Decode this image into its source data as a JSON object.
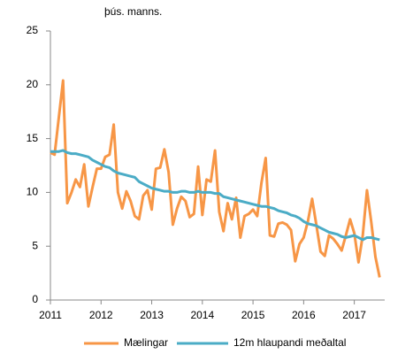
{
  "chart_data": {
    "type": "line",
    "y_label": "þús. manns.",
    "x": [
      2011,
      2011.083,
      2011.167,
      2011.25,
      2011.333,
      2011.417,
      2011.5,
      2011.583,
      2011.667,
      2011.75,
      2011.833,
      2011.917,
      2012,
      2012.083,
      2012.167,
      2012.25,
      2012.333,
      2012.417,
      2012.5,
      2012.583,
      2012.667,
      2012.75,
      2012.833,
      2012.917,
      2013,
      2013.083,
      2013.167,
      2013.25,
      2013.333,
      2013.417,
      2013.5,
      2013.583,
      2013.667,
      2013.75,
      2013.833,
      2013.917,
      2014,
      2014.083,
      2014.167,
      2014.25,
      2014.333,
      2014.417,
      2014.5,
      2014.583,
      2014.667,
      2014.75,
      2014.833,
      2014.917,
      2015,
      2015.083,
      2015.167,
      2015.25,
      2015.333,
      2015.417,
      2015.5,
      2015.583,
      2015.667,
      2015.75,
      2015.833,
      2015.917,
      2016,
      2016.083,
      2016.167,
      2016.25,
      2016.333,
      2016.417,
      2016.5,
      2016.583,
      2016.667,
      2016.75,
      2016.833,
      2016.917,
      2017,
      2017.083,
      2017.167,
      2017.25,
      2017.333,
      2017.417,
      2017.5
    ],
    "series": [
      {
        "name": "Mælingar",
        "color": "#f79646",
        "values": [
          13.7,
          13.5,
          17.0,
          20.4,
          9.0,
          10.0,
          11.2,
          10.5,
          12.6,
          8.7,
          10.5,
          12.2,
          12.2,
          13.3,
          13.5,
          16.3,
          10.0,
          8.5,
          10.1,
          9.2,
          7.8,
          7.5,
          9.7,
          10.2,
          8.4,
          12.2,
          12.3,
          14.0,
          11.9,
          7.0,
          8.5,
          9.6,
          9.2,
          7.7,
          8.0,
          12.4,
          7.9,
          11.2,
          11.0,
          13.9,
          8.2,
          6.4,
          9.0,
          7.5,
          9.5,
          5.8,
          7.8,
          8.0,
          8.4,
          7.8,
          10.9,
          13.2,
          6.0,
          5.9,
          7.1,
          7.2,
          7.0,
          6.5,
          3.6,
          5.2,
          5.8,
          7.3,
          9.4,
          7.0,
          4.5,
          4.1,
          6.0,
          5.7,
          5.2,
          4.6,
          6.0,
          7.5,
          6.2,
          3.5,
          6.0,
          10.2,
          7.3,
          4.0,
          2.1
        ]
      },
      {
        "name": "12m hlaupandi meðaltal",
        "color": "#4bacc6",
        "values": [
          13.8,
          13.8,
          13.8,
          13.9,
          13.7,
          13.6,
          13.6,
          13.5,
          13.4,
          13.3,
          13.0,
          12.8,
          12.6,
          12.4,
          12.3,
          12.0,
          11.8,
          11.7,
          11.6,
          11.5,
          11.4,
          11.0,
          10.8,
          10.6,
          10.4,
          10.3,
          10.2,
          10.1,
          10.1,
          10.0,
          10.0,
          10.1,
          10.1,
          10.0,
          10.0,
          10.1,
          10.0,
          10.0,
          10.0,
          9.9,
          9.9,
          9.6,
          9.5,
          9.4,
          9.3,
          9.2,
          9.1,
          9.0,
          8.9,
          8.8,
          8.7,
          8.7,
          8.6,
          8.5,
          8.3,
          8.2,
          8.1,
          7.9,
          7.8,
          7.6,
          7.3,
          7.1,
          7.0,
          6.9,
          6.7,
          6.5,
          6.3,
          6.2,
          6.1,
          5.9,
          5.8,
          5.9,
          6.0,
          5.8,
          5.6,
          5.8,
          5.8,
          5.7,
          5.6
        ]
      }
    ],
    "xlim": [
      2011,
      2017.6
    ],
    "xticks": [
      2011,
      2012,
      2013,
      2014,
      2015,
      2016,
      2017
    ],
    "ylim": [
      0,
      25
    ],
    "yticks": [
      0,
      5,
      10,
      15,
      20,
      25
    ],
    "grid": false
  }
}
